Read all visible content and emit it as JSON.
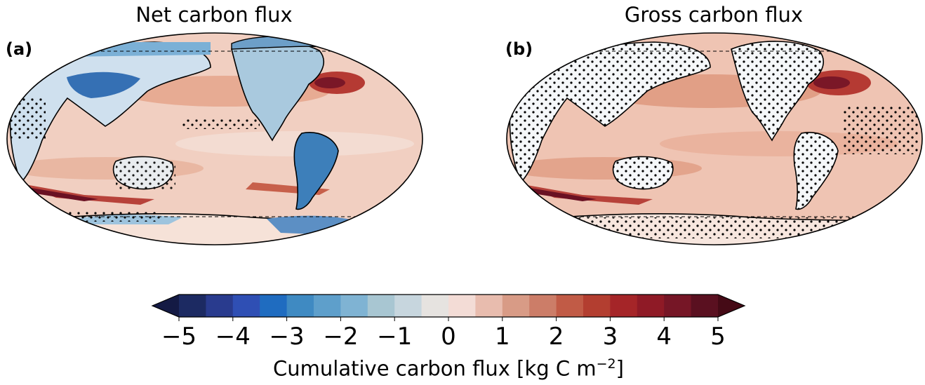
{
  "panels": [
    {
      "letter": "(a)",
      "title": "Net carbon flux"
    },
    {
      "letter": "(b)",
      "title": "Gross carbon flux"
    }
  ],
  "colorbar": {
    "label_prefix": "Cumulative carbon flux [kg C m",
    "label_exp": "−2",
    "label_suffix": "]",
    "ticks": [
      "−5",
      "−4",
      "−3",
      "−2",
      "−1",
      "0",
      "1",
      "2",
      "3",
      "4",
      "5"
    ],
    "tick_values": [
      -5,
      -4,
      -3,
      -2,
      -1,
      0,
      1,
      2,
      3,
      4,
      5
    ],
    "colors": [
      "#1c2a62",
      "#293b8e",
      "#2f4fb4",
      "#1f6cc0",
      "#3f8ac2",
      "#5e9fcb",
      "#7fb3d3",
      "#a8c6d2",
      "#c7d6de",
      "#e6e3e0",
      "#f3dcd6",
      "#e8bcae",
      "#d89b86",
      "#cc7d68",
      "#c15b46",
      "#b33e30",
      "#a52528",
      "#8f1a26",
      "#761626",
      "#5a1020"
    ],
    "extend_min_color": "#141a44",
    "extend_max_color": "#450a16"
  }
}
